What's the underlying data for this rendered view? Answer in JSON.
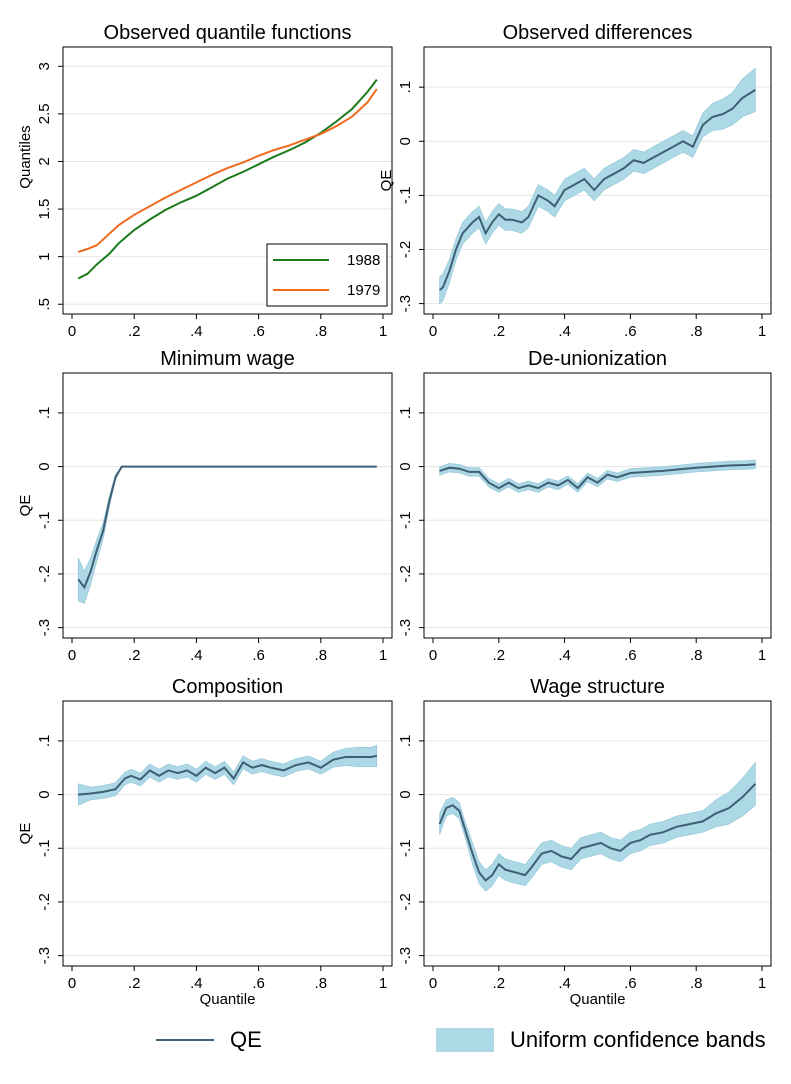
{
  "colors": {
    "qe_line": "#3f5f74",
    "band": "#add8e6",
    "band_edge": "#8ec5d6",
    "line_1988": "#1a7a1a",
    "line_1979": "#f06a1e",
    "grid": "#e6e6e6"
  },
  "legend": {
    "qe_label": "QE",
    "band_label": "Uniform confidence bands"
  },
  "chart_data": [
    {
      "type": "line",
      "title": "Observed quantile functions",
      "xlabel": "",
      "ylabel": "Quantiles",
      "xlim": [
        0,
        1
      ],
      "ylim": [
        0.45,
        3.15
      ],
      "xticks": [
        0,
        0.2,
        0.4,
        0.6,
        0.8,
        1
      ],
      "xtick_labels": [
        "0",
        ".2",
        ".4",
        ".6",
        ".8",
        "1"
      ],
      "yticks": [
        0.5,
        1,
        1.5,
        2,
        2.5,
        3
      ],
      "ytick_labels": [
        ".5",
        "1",
        "1.5",
        "2",
        "2.5",
        "3"
      ],
      "legend_position": "bottom-right",
      "series": [
        {
          "name": "1988",
          "x": [
            0.02,
            0.05,
            0.08,
            0.12,
            0.15,
            0.2,
            0.25,
            0.3,
            0.35,
            0.4,
            0.45,
            0.5,
            0.55,
            0.6,
            0.65,
            0.7,
            0.75,
            0.8,
            0.85,
            0.9,
            0.95,
            0.98
          ],
          "y": [
            0.77,
            0.82,
            0.92,
            1.03,
            1.14,
            1.28,
            1.39,
            1.49,
            1.57,
            1.64,
            1.73,
            1.82,
            1.89,
            1.97,
            2.05,
            2.12,
            2.2,
            2.3,
            2.42,
            2.55,
            2.73,
            2.86
          ]
        },
        {
          "name": "1979",
          "x": [
            0.02,
            0.05,
            0.08,
            0.12,
            0.15,
            0.2,
            0.25,
            0.3,
            0.35,
            0.4,
            0.45,
            0.5,
            0.55,
            0.6,
            0.65,
            0.7,
            0.75,
            0.8,
            0.85,
            0.9,
            0.95,
            0.98
          ],
          "y": [
            1.05,
            1.08,
            1.12,
            1.24,
            1.33,
            1.44,
            1.53,
            1.62,
            1.7,
            1.78,
            1.86,
            1.93,
            1.99,
            2.06,
            2.12,
            2.17,
            2.23,
            2.29,
            2.37,
            2.47,
            2.62,
            2.76
          ]
        }
      ]
    },
    {
      "type": "area",
      "title": "Observed differences",
      "xlabel": "",
      "ylabel": "QE",
      "xlim": [
        0,
        1
      ],
      "ylim": [
        -0.31,
        0.165
      ],
      "xticks": [
        0,
        0.2,
        0.4,
        0.6,
        0.8,
        1
      ],
      "xtick_labels": [
        "0",
        ".2",
        ".4",
        ".6",
        ".8",
        "1"
      ],
      "yticks": [
        -0.3,
        -0.2,
        -0.1,
        0,
        0.1
      ],
      "ytick_labels": [
        "-.3",
        "-.2",
        "-.1",
        "0",
        ".1"
      ],
      "series": [
        {
          "name": "QE",
          "x": [
            0.02,
            0.03,
            0.05,
            0.07,
            0.09,
            0.12,
            0.14,
            0.16,
            0.18,
            0.2,
            0.22,
            0.24,
            0.27,
            0.29,
            0.32,
            0.35,
            0.37,
            0.4,
            0.43,
            0.46,
            0.49,
            0.52,
            0.55,
            0.58,
            0.61,
            0.64,
            0.67,
            0.7,
            0.73,
            0.76,
            0.79,
            0.82,
            0.85,
            0.88,
            0.91,
            0.94,
            0.98
          ],
          "y": [
            -0.275,
            -0.27,
            -0.24,
            -0.2,
            -0.17,
            -0.15,
            -0.14,
            -0.17,
            -0.15,
            -0.135,
            -0.145,
            -0.145,
            -0.15,
            -0.14,
            -0.1,
            -0.11,
            -0.12,
            -0.09,
            -0.08,
            -0.07,
            -0.09,
            -0.07,
            -0.06,
            -0.05,
            -0.035,
            -0.04,
            -0.03,
            -0.02,
            -0.01,
            0,
            -0.01,
            0.03,
            0.045,
            0.05,
            0.06,
            0.08,
            0.095
          ],
          "ci_halfwidth": [
            0.025,
            0.025,
            0.022,
            0.02,
            0.02,
            0.02,
            0.02,
            0.02,
            0.02,
            0.02,
            0.02,
            0.02,
            0.02,
            0.02,
            0.02,
            0.02,
            0.02,
            0.02,
            0.02,
            0.02,
            0.02,
            0.02,
            0.02,
            0.02,
            0.02,
            0.02,
            0.02,
            0.02,
            0.02,
            0.02,
            0.02,
            0.022,
            0.025,
            0.028,
            0.03,
            0.035,
            0.04
          ]
        }
      ]
    },
    {
      "type": "area",
      "title": "Minimum wage",
      "xlabel": "",
      "ylabel": "QE",
      "xlim": [
        0,
        1
      ],
      "ylim": [
        -0.31,
        0.165
      ],
      "xticks": [
        0,
        0.2,
        0.4,
        0.6,
        0.8,
        1
      ],
      "xtick_labels": [
        "0",
        ".2",
        ".4",
        ".6",
        ".8",
        "1"
      ],
      "yticks": [
        -0.3,
        -0.2,
        -0.1,
        0,
        0.1
      ],
      "ytick_labels": [
        "-.3",
        "-.2",
        "-.1",
        "0",
        ".1"
      ],
      "series": [
        {
          "name": "QE",
          "x": [
            0.02,
            0.04,
            0.06,
            0.08,
            0.1,
            0.12,
            0.14,
            0.16,
            0.18,
            0.2,
            0.4,
            0.6,
            0.8,
            0.98
          ],
          "y": [
            -0.21,
            -0.225,
            -0.195,
            -0.155,
            -0.12,
            -0.065,
            -0.02,
            0,
            0,
            0,
            0,
            0,
            0,
            0
          ],
          "ci_halfwidth": [
            0.04,
            0.03,
            0.025,
            0.02,
            0.015,
            0.01,
            0.005,
            0,
            0,
            0,
            0,
            0,
            0,
            0
          ]
        }
      ]
    },
    {
      "type": "area",
      "title": "De-unionization",
      "xlabel": "",
      "ylabel": "",
      "xlim": [
        0,
        1
      ],
      "ylim": [
        -0.31,
        0.165
      ],
      "xticks": [
        0,
        0.2,
        0.4,
        0.6,
        0.8,
        1
      ],
      "xtick_labels": [
        "0",
        ".2",
        ".4",
        ".6",
        ".8",
        "1"
      ],
      "yticks": [
        -0.3,
        -0.2,
        -0.1,
        0,
        0.1
      ],
      "ytick_labels": [
        "-.3",
        "-.2",
        "-.1",
        "0",
        ".1"
      ],
      "series": [
        {
          "name": "QE",
          "x": [
            0.02,
            0.05,
            0.08,
            0.11,
            0.14,
            0.17,
            0.2,
            0.23,
            0.26,
            0.29,
            0.32,
            0.35,
            0.38,
            0.41,
            0.44,
            0.47,
            0.5,
            0.53,
            0.56,
            0.6,
            0.65,
            0.7,
            0.75,
            0.8,
            0.85,
            0.9,
            0.95,
            0.98
          ],
          "y": [
            -0.008,
            -0.002,
            -0.004,
            -0.01,
            -0.01,
            -0.03,
            -0.04,
            -0.03,
            -0.04,
            -0.035,
            -0.04,
            -0.03,
            -0.035,
            -0.025,
            -0.04,
            -0.02,
            -0.03,
            -0.015,
            -0.02,
            -0.012,
            -0.01,
            -0.008,
            -0.005,
            -0.002,
            0,
            0.002,
            0.003,
            0.004
          ],
          "ci_halfwidth": [
            0.008,
            0.008,
            0.008,
            0.008,
            0.008,
            0.008,
            0.008,
            0.008,
            0.008,
            0.008,
            0.008,
            0.008,
            0.008,
            0.008,
            0.008,
            0.008,
            0.008,
            0.008,
            0.008,
            0.008,
            0.008,
            0.008,
            0.008,
            0.008,
            0.008,
            0.008,
            0.008,
            0.008
          ]
        }
      ]
    },
    {
      "type": "area",
      "title": "Composition",
      "xlabel": "Quantile",
      "ylabel": "QE",
      "xlim": [
        0,
        1
      ],
      "ylim": [
        -0.31,
        0.165
      ],
      "xticks": [
        0,
        0.2,
        0.4,
        0.6,
        0.8,
        1
      ],
      "xtick_labels": [
        "0",
        ".2",
        ".4",
        ".6",
        ".8",
        "1"
      ],
      "yticks": [
        -0.3,
        -0.2,
        -0.1,
        0,
        0.1
      ],
      "ytick_labels": [
        "-.3",
        "-.2",
        "-.1",
        "0",
        ".1"
      ],
      "series": [
        {
          "name": "QE",
          "x": [
            0.02,
            0.06,
            0.1,
            0.14,
            0.17,
            0.19,
            0.22,
            0.25,
            0.28,
            0.31,
            0.34,
            0.37,
            0.4,
            0.43,
            0.46,
            0.49,
            0.52,
            0.55,
            0.58,
            0.61,
            0.64,
            0.68,
            0.72,
            0.76,
            0.8,
            0.84,
            0.88,
            0.92,
            0.96,
            0.98
          ],
          "y": [
            0,
            0.002,
            0.005,
            0.01,
            0.03,
            0.035,
            0.028,
            0.045,
            0.035,
            0.045,
            0.04,
            0.045,
            0.035,
            0.05,
            0.04,
            0.05,
            0.03,
            0.06,
            0.05,
            0.055,
            0.05,
            0.045,
            0.055,
            0.06,
            0.05,
            0.065,
            0.07,
            0.07,
            0.07,
            0.072
          ],
          "ci_halfwidth": [
            0.02,
            0.012,
            0.012,
            0.012,
            0.012,
            0.012,
            0.012,
            0.012,
            0.012,
            0.012,
            0.012,
            0.012,
            0.012,
            0.012,
            0.012,
            0.012,
            0.012,
            0.012,
            0.012,
            0.012,
            0.012,
            0.012,
            0.012,
            0.012,
            0.012,
            0.014,
            0.016,
            0.018,
            0.018,
            0.02
          ]
        }
      ]
    },
    {
      "type": "area",
      "title": "Wage structure",
      "xlabel": "Quantile",
      "ylabel": "",
      "xlim": [
        0,
        1
      ],
      "ylim": [
        -0.31,
        0.165
      ],
      "xticks": [
        0,
        0.2,
        0.4,
        0.6,
        0.8,
        1
      ],
      "xtick_labels": [
        "0",
        ".2",
        ".4",
        ".6",
        ".8",
        "1"
      ],
      "yticks": [
        -0.3,
        -0.2,
        -0.1,
        0,
        0.1
      ],
      "ytick_labels": [
        "-.3",
        "-.2",
        "-.1",
        "0",
        ".1"
      ],
      "series": [
        {
          "name": "QE",
          "x": [
            0.02,
            0.04,
            0.06,
            0.08,
            0.1,
            0.12,
            0.14,
            0.16,
            0.18,
            0.2,
            0.22,
            0.25,
            0.28,
            0.3,
            0.33,
            0.36,
            0.39,
            0.42,
            0.45,
            0.48,
            0.51,
            0.54,
            0.57,
            0.6,
            0.63,
            0.66,
            0.7,
            0.74,
            0.78,
            0.82,
            0.86,
            0.9,
            0.94,
            0.98
          ],
          "y": [
            -0.055,
            -0.025,
            -0.02,
            -0.03,
            -0.07,
            -0.11,
            -0.145,
            -0.16,
            -0.15,
            -0.13,
            -0.14,
            -0.145,
            -0.15,
            -0.135,
            -0.11,
            -0.105,
            -0.115,
            -0.12,
            -0.1,
            -0.095,
            -0.09,
            -0.1,
            -0.105,
            -0.09,
            -0.085,
            -0.075,
            -0.07,
            -0.06,
            -0.055,
            -0.05,
            -0.035,
            -0.025,
            -0.005,
            0.02
          ],
          "ci_halfwidth": [
            0.02,
            0.015,
            0.015,
            0.015,
            0.015,
            0.02,
            0.02,
            0.02,
            0.02,
            0.02,
            0.02,
            0.02,
            0.02,
            0.02,
            0.02,
            0.02,
            0.02,
            0.02,
            0.02,
            0.02,
            0.02,
            0.02,
            0.02,
            0.02,
            0.02,
            0.02,
            0.02,
            0.02,
            0.02,
            0.02,
            0.025,
            0.03,
            0.035,
            0.04
          ]
        }
      ]
    }
  ]
}
